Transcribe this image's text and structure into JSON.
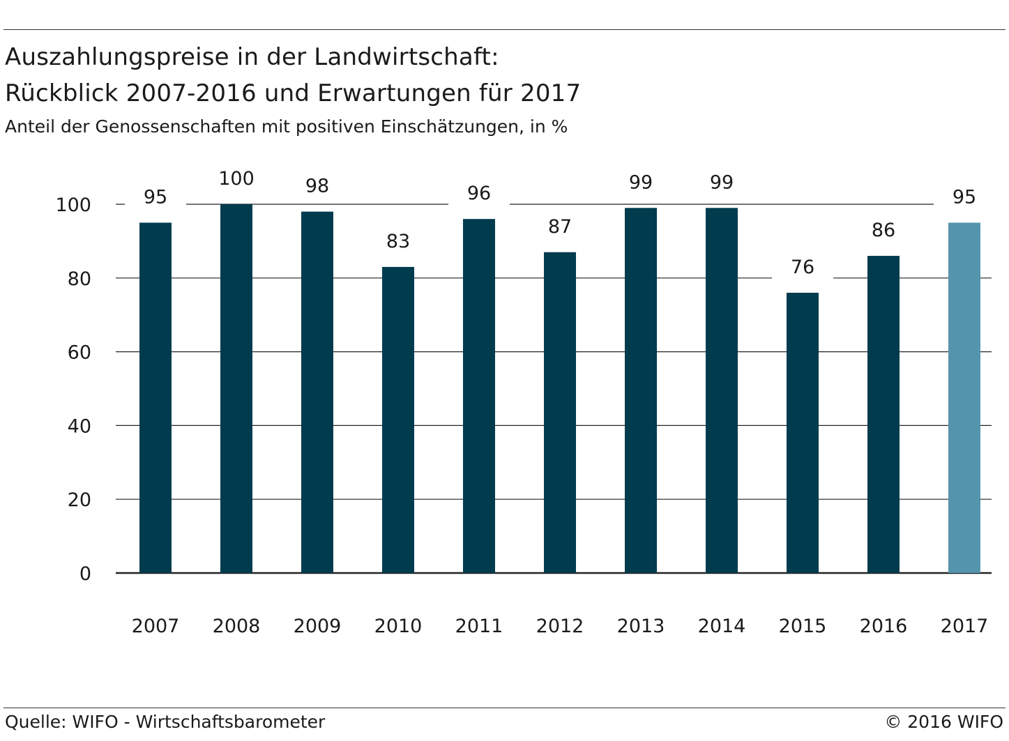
{
  "header": {
    "title_line1": "Auszahlungspreise in der Landwirtschaft:",
    "title_line2": "Rückblick 2007-2016 und Erwartungen für 2017",
    "subtitle": "Anteil der Genossenschaften mit positiven Einschätzungen, in %"
  },
  "footer": {
    "source": "Quelle: WIFO - Wirtschaftsbarometer",
    "copyright": "© 2016 WIFO"
  },
  "colors": {
    "bar": "#003b4e",
    "bar_forecast": "#5594ad",
    "grid": "#222222"
  },
  "chart_data": {
    "type": "bar",
    "categories": [
      "2007",
      "2008",
      "2009",
      "2010",
      "2011",
      "2012",
      "2013",
      "2014",
      "2015",
      "2016",
      "2017"
    ],
    "values": [
      95,
      100,
      98,
      83,
      96,
      87,
      99,
      99,
      76,
      86,
      95
    ],
    "data_labels": [
      "95",
      "100",
      "98",
      "83",
      "96",
      "87",
      "99",
      "99",
      "76",
      "86",
      "95"
    ],
    "highlighted_category": "2017",
    "title": "Auszahlungspreise in der Landwirtschaft: Rückblick 2007-2016 und Erwartungen für 2017",
    "subtitle": "Anteil der Genossenschaften mit positiven Einschätzungen, in %",
    "ylim": [
      0,
      100
    ],
    "yticks": [
      "0",
      "20",
      "40",
      "60",
      "80",
      "100"
    ],
    "grid": true,
    "legend": "none"
  }
}
